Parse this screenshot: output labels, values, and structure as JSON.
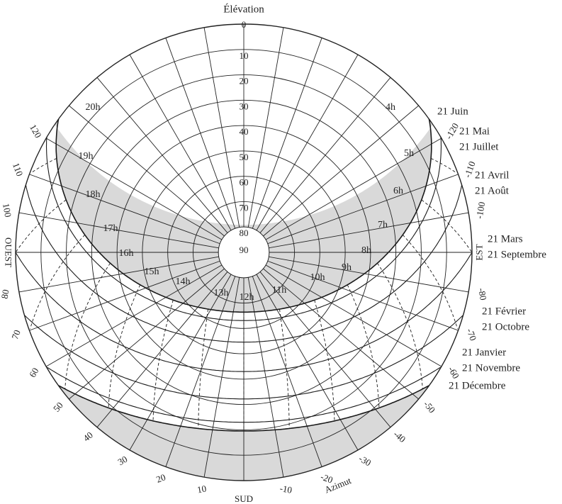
{
  "diagram": {
    "title": "Élévation",
    "azimuth_label": "Azimut",
    "directions": {
      "east": "EST",
      "west": "OUEST",
      "south": "SUD"
    },
    "elevation_ticks": [
      "0",
      "10",
      "20",
      "30",
      "40",
      "50",
      "60",
      "70",
      "80",
      "90"
    ],
    "azimuth_ticks": [
      {
        "value": 120,
        "text": "120"
      },
      {
        "value": 110,
        "text": "110"
      },
      {
        "value": 100,
        "text": "100"
      },
      {
        "value": 80,
        "text": "80"
      },
      {
        "value": 70,
        "text": "70"
      },
      {
        "value": 60,
        "text": "60"
      },
      {
        "value": 50,
        "text": "50"
      },
      {
        "value": 40,
        "text": "40"
      },
      {
        "value": 30,
        "text": "30"
      },
      {
        "value": 20,
        "text": "20"
      },
      {
        "value": 10,
        "text": "10"
      },
      {
        "value": -10,
        "text": "-10"
      },
      {
        "value": -20,
        "text": "-20"
      },
      {
        "value": -30,
        "text": "-30"
      },
      {
        "value": -40,
        "text": "-40"
      },
      {
        "value": -50,
        "text": "-50"
      },
      {
        "value": -60,
        "text": "-60"
      },
      {
        "value": -70,
        "text": "-70"
      },
      {
        "value": -80,
        "text": "-80"
      },
      {
        "value": -100,
        "text": "-100"
      },
      {
        "value": -110,
        "text": "-110"
      },
      {
        "value": -120,
        "text": "-120"
      }
    ],
    "hours": [
      "4h",
      "5h",
      "6h",
      "7h",
      "8h",
      "9h",
      "10h",
      "11h",
      "12h",
      "13h",
      "14h",
      "15h",
      "16h",
      "17h",
      "18h",
      "19h",
      "20h"
    ],
    "dates": [
      [
        "21 Juin"
      ],
      [
        "21 Mai",
        "21 Juillet"
      ],
      [
        "21 Avril",
        "21 Août"
      ],
      [
        "21 Mars",
        "21 Septembre"
      ],
      [
        "21 Février",
        "21 Octobre"
      ],
      [
        "21 Janvier",
        "21 Novembre"
      ],
      [
        "21 Décembre"
      ]
    ],
    "colors": {
      "shade": "#d9d9d9",
      "line": "#1a1a1a",
      "grid": "#222222"
    }
  }
}
